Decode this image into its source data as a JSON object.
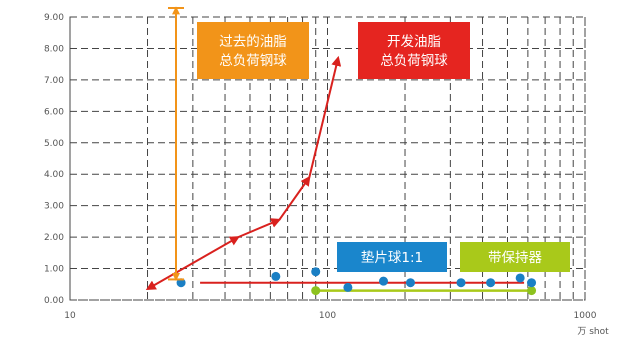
{
  "chart_data": {
    "type": "scatter",
    "x_scale": "log",
    "xlim": [
      10,
      1000
    ],
    "ylim": [
      0,
      9
    ],
    "x_ticks": [
      "10",
      "100",
      "1000"
    ],
    "x_unit": "万 shot",
    "y_ticks": [
      "0.00",
      "1.00",
      "2.00",
      "3.00",
      "4.00",
      "5.00",
      "6.00",
      "7.00",
      "8.00",
      "9.00"
    ],
    "grid": true,
    "series": [
      {
        "name": "垫片球1:1",
        "color": "#1a7fc4",
        "points": [
          [
            27,
            0.55
          ],
          [
            63,
            0.75
          ],
          [
            90,
            0.9
          ],
          [
            120,
            0.4
          ],
          [
            165,
            0.6
          ],
          [
            210,
            0.55
          ],
          [
            330,
            0.55
          ],
          [
            430,
            0.55
          ],
          [
            560,
            0.7
          ],
          [
            620,
            0.55
          ]
        ]
      },
      {
        "name": "带保持器",
        "color": "#8dc21f",
        "line_x": [
          90,
          620
        ],
        "line_y": 0.3,
        "endpoints": [
          [
            90,
            0.3
          ],
          [
            620,
            0.3
          ]
        ]
      }
    ],
    "red_flat_line": {
      "x": [
        32,
        580
      ],
      "y": 0.55
    },
    "dev_grease_arrow": [
      [
        20,
        0.35
      ],
      [
        45,
        2.0
      ],
      [
        65,
        2.55
      ],
      [
        85,
        3.9
      ],
      [
        110,
        7.7
      ]
    ],
    "past_grease_range": {
      "x": 40,
      "y": [
        0.75,
        9.0
      ]
    },
    "labels": {
      "past_grease": [
        "过去的油脂",
        "总负荷钢球"
      ],
      "dev_grease": [
        "开发油脂",
        "总负荷钢球"
      ],
      "spacer": "垫片球1:1",
      "retainer": "带保持器"
    },
    "colors": {
      "past": "#f29419",
      "dev": "#e52520",
      "spacer": "#1a86cc",
      "retainer": "#a9c91a",
      "arrow": "#d9211e"
    }
  }
}
